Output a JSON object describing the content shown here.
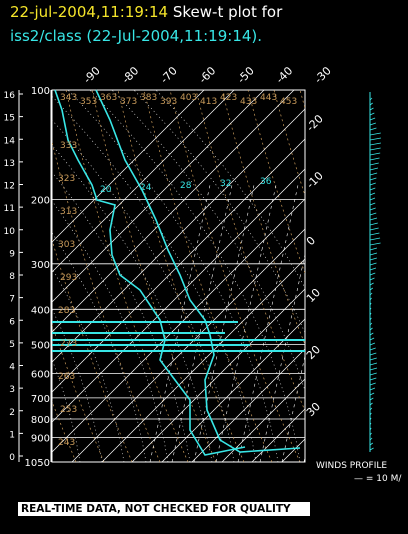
{
  "header": {
    "date": "22-jul-2004,11:19:14",
    "title_rest": "Skew-t plot for",
    "subtitle": "iss2/class (22-Jul-2004,11:19:14)."
  },
  "skewt": {
    "pressure_ticks": [
      "100",
      "200",
      "300",
      "400",
      "500",
      "600",
      "700",
      "800",
      "900",
      "1050"
    ],
    "height_ticks": [
      "16",
      "15",
      "14",
      "13",
      "12",
      "11",
      "10",
      "9",
      "8",
      "7",
      "6",
      "5",
      "4",
      "3",
      "2",
      "1",
      "0"
    ],
    "top_temp_ticks": [
      "-90",
      "-80",
      "-70",
      "-60",
      "-50",
      "-40",
      "-30"
    ],
    "right_temp_ticks": [
      "-20",
      "-10",
      "0",
      "10",
      "20",
      "30"
    ],
    "mixing_ratio_labels": [
      "20",
      "24",
      "28",
      "32",
      "36"
    ],
    "theta_labels": [
      "243",
      "253",
      "263",
      "273",
      "283",
      "293",
      "303",
      "313",
      "323",
      "333",
      "343",
      "353",
      "363",
      "373",
      "383",
      "393",
      "403",
      "413",
      "423",
      "433",
      "443",
      "453"
    ]
  },
  "winds": {
    "label": "WINDS PROFILE",
    "scale": "— = 10 M/"
  },
  "banner": "REAL-TIME DATA, NOT CHECKED FOR QUALITY",
  "colors": {
    "date": "#f5e52a",
    "trace": "#38e6e6",
    "labels": "#c89a5a",
    "grid": "#ffffff"
  }
}
